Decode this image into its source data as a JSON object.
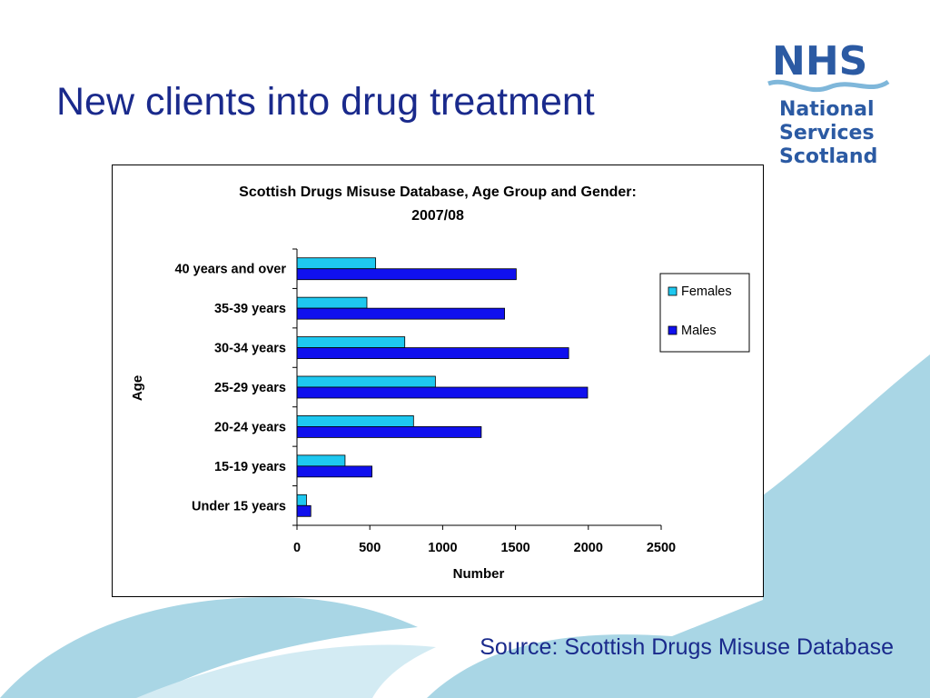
{
  "slide": {
    "title": "New clients into drug treatment",
    "source": "Source: Scottish Drugs Misuse Database"
  },
  "logo": {
    "wordmark": "NHS",
    "lines": [
      "National",
      "Services",
      "Scotland"
    ],
    "color": "#2b5aa3",
    "wave_color": "#7fb7da"
  },
  "theme": {
    "title_color": "#1a2a8c",
    "background_wave_color": "#a9d6e5"
  },
  "chart_data": {
    "type": "bar",
    "orientation": "horizontal",
    "title": "Scottish Drugs Misuse Database, Age Group and Gender:",
    "subtitle": "2007/08",
    "xlabel": "Number",
    "ylabel": "Age",
    "xlim": [
      0,
      2500
    ],
    "x_ticks": [
      0,
      500,
      1000,
      1500,
      2000,
      2500
    ],
    "grid": false,
    "legend_position": "right",
    "categories": [
      "40 years and over",
      "35-39 years",
      "30-34 years",
      "25-29 years",
      "20-24 years",
      "15-19 years",
      "Under 15 years"
    ],
    "series": [
      {
        "name": "Females",
        "color": "#1ec8f0",
        "values": [
          540,
          480,
          740,
          950,
          800,
          330,
          65
        ]
      },
      {
        "name": "Males",
        "color": "#1010ee",
        "values": [
          1505,
          1425,
          1865,
          1995,
          1265,
          515,
          95
        ]
      }
    ]
  }
}
